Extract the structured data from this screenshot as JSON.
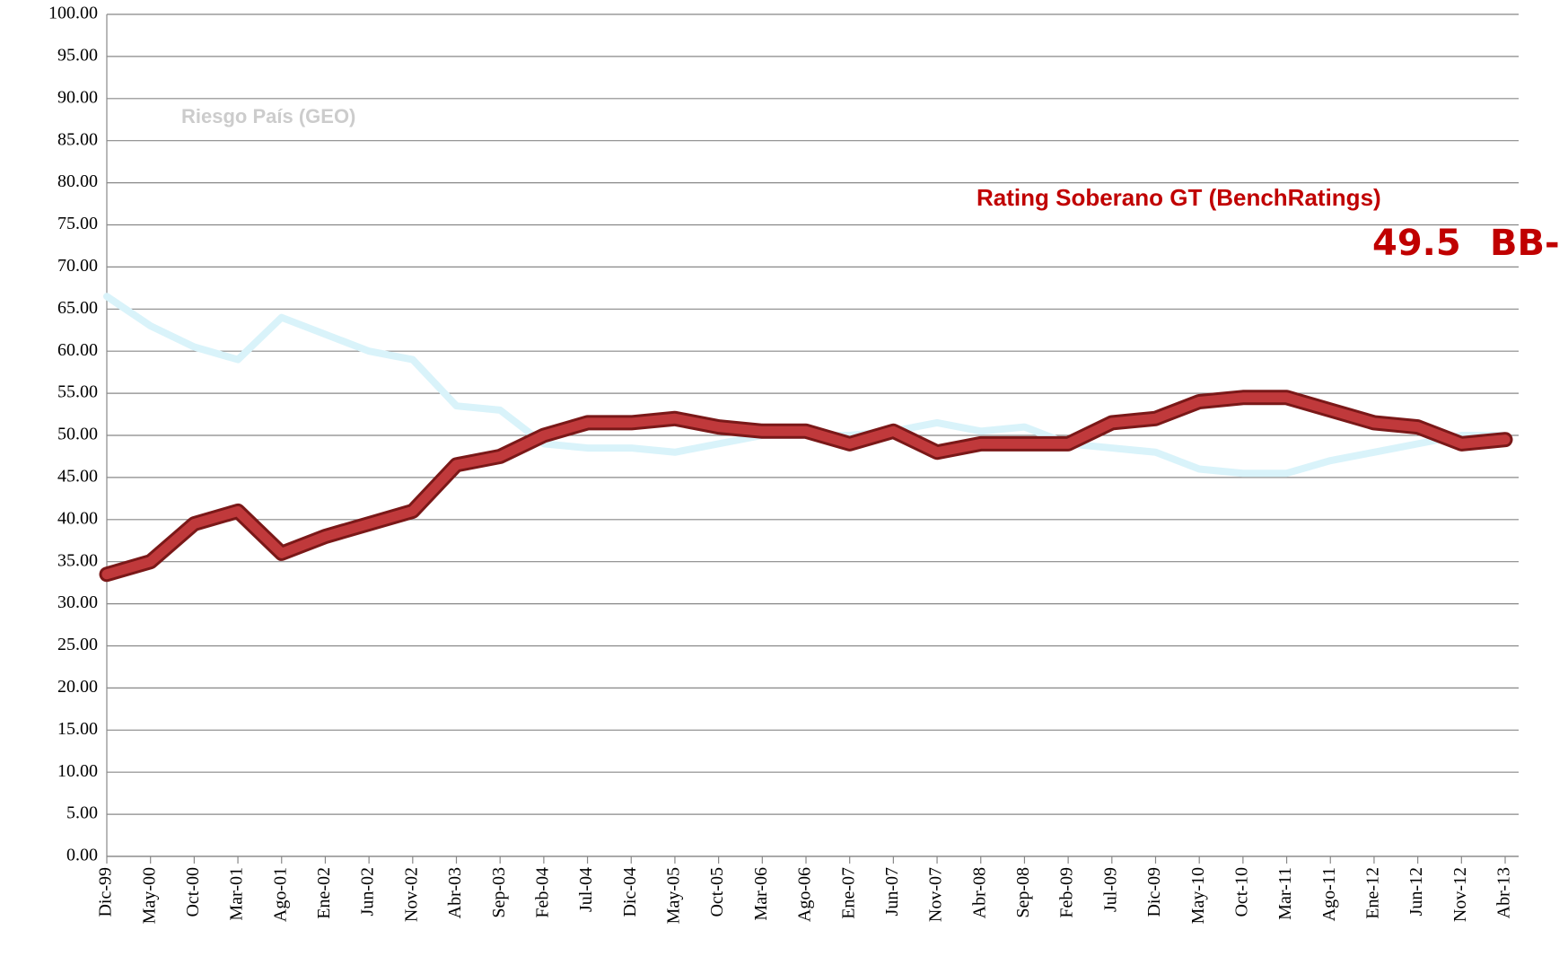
{
  "chart_data": {
    "type": "line",
    "categories": [
      "Dic-99",
      "May-00",
      "Oct-00",
      "Mar-01",
      "Ago-01",
      "Ene-02",
      "Jun-02",
      "Nov-02",
      "Abr-03",
      "Sep-03",
      "Feb-04",
      "Jul-04",
      "Dic-04",
      "May-05",
      "Oct-05",
      "Mar-06",
      "Ago-06",
      "Ene-07",
      "Jun-07",
      "Nov-07",
      "Abr-08",
      "Sep-08",
      "Feb-09",
      "Jul-09",
      "Dic-09",
      "May-10",
      "Oct-10",
      "Mar-11",
      "Ago-11",
      "Ene-12",
      "Jun-12",
      "Nov-12",
      "Abr-13"
    ],
    "series": [
      {
        "name": "Riesgo País (GEO)",
        "color": "#d9f3fa",
        "values": [
          66.5,
          63,
          60.5,
          59,
          64,
          62,
          60,
          59,
          53.5,
          53,
          49,
          48.5,
          48.5,
          48,
          49,
          50,
          50,
          50,
          50.5,
          51.5,
          50.5,
          51,
          49,
          48.5,
          48,
          46,
          45.5,
          45.5,
          47,
          48,
          49,
          50,
          50
        ]
      },
      {
        "name": "Rating Soberano GT (BenchRatings)",
        "color": "#c0393b",
        "values": [
          33.5,
          35,
          39.5,
          41,
          36,
          38,
          39.5,
          41,
          46.5,
          47.5,
          50,
          51.5,
          51.5,
          52,
          51,
          50.5,
          50.5,
          49,
          50.5,
          48,
          49,
          49,
          49,
          51.5,
          52,
          54,
          54.5,
          54.5,
          53,
          51.5,
          51,
          49,
          49.5
        ]
      }
    ],
    "annotations": [
      "49.5",
      "BB-"
    ],
    "ylim": [
      0,
      100
    ],
    "yticks": [
      {
        "value": 0,
        "label": "0.00"
      },
      {
        "value": 5,
        "label": "5.00"
      },
      {
        "value": 10,
        "label": "10.00"
      },
      {
        "value": 15,
        "label": "15.00"
      },
      {
        "value": 20,
        "label": "20.00"
      },
      {
        "value": 25,
        "label": "25.00"
      },
      {
        "value": 30,
        "label": "30.00"
      },
      {
        "value": 35,
        "label": "35.00"
      },
      {
        "value": 40,
        "label": "40.00"
      },
      {
        "value": 45,
        "label": "45.00"
      },
      {
        "value": 50,
        "label": "50.00"
      },
      {
        "value": 55,
        "label": "55.00"
      },
      {
        "value": 60,
        "label": "60.00"
      },
      {
        "value": 65,
        "label": "65.00"
      },
      {
        "value": 70,
        "label": "70.00"
      },
      {
        "value": 75,
        "label": "75.00"
      },
      {
        "value": 80,
        "label": "80.00"
      },
      {
        "value": 85,
        "label": "85.00"
      },
      {
        "value": 90,
        "label": "90.00"
      },
      {
        "value": 95,
        "label": "95.00"
      },
      {
        "value": 100,
        "label": "100.00"
      }
    ],
    "grid": true
  }
}
